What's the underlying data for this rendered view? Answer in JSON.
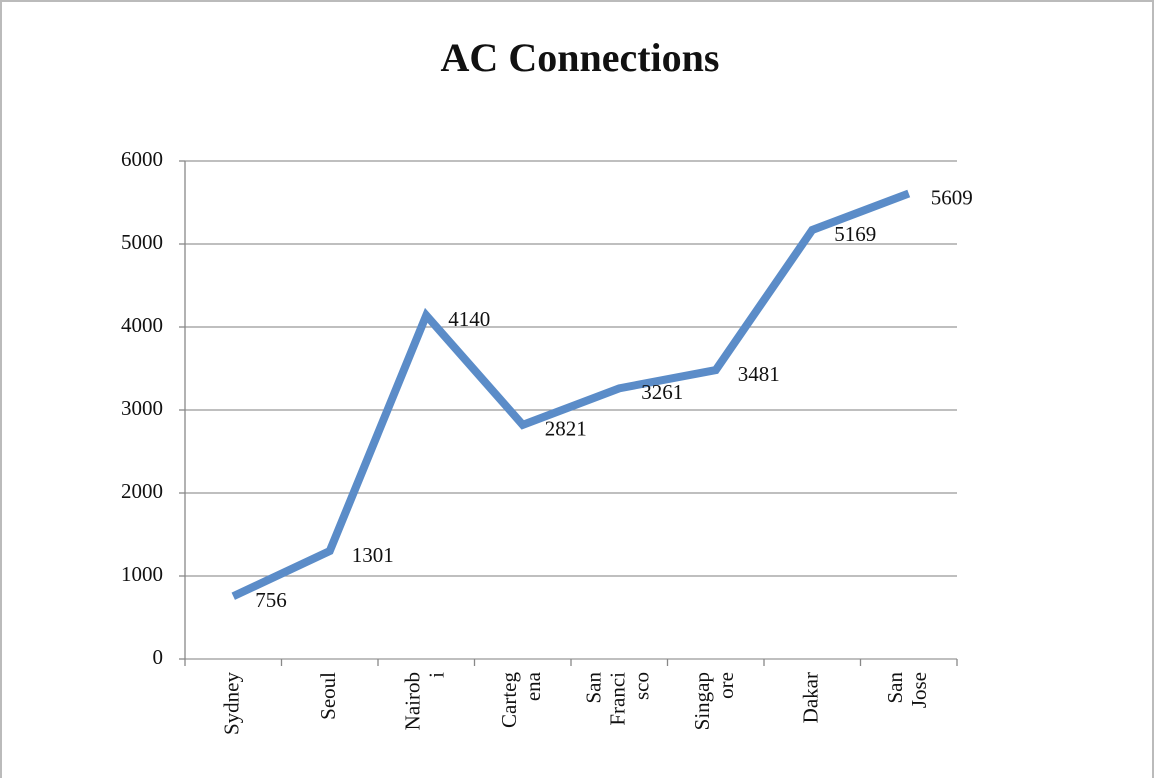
{
  "chart_data": {
    "type": "line",
    "title": "AC Connections",
    "categories": [
      "Sydney",
      "Seoul",
      "Nairobi",
      "Cartegena",
      "San Francisco",
      "Singapore",
      "Dakar",
      "San Jose"
    ],
    "series": [
      {
        "name": "AC Connections",
        "color": "#5b8cc8",
        "values": [
          756,
          1301,
          4140,
          2821,
          3261,
          3481,
          5169,
          5609
        ]
      }
    ],
    "ylim": [
      0,
      6000
    ],
    "yticks": [
      0,
      1000,
      2000,
      3000,
      4000,
      5000,
      6000
    ],
    "grid": true
  }
}
